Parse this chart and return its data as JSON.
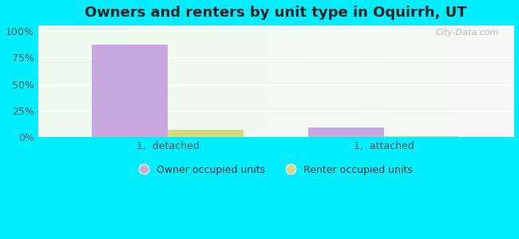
{
  "title": "Owners and renters by unit type in Oquirrh, UT",
  "categories": [
    "1,  detached",
    "1,  attached"
  ],
  "owner_values": [
    87,
    9
  ],
  "renter_values": [
    7,
    1
  ],
  "owner_color": "#c9a8e0",
  "renter_color": "#d4d97a",
  "fig_bg_color": "#00eeff",
  "plot_bg_color_center": "#eef8ee",
  "plot_bg_color_edge": "#d8f5f0",
  "yticks": [
    0,
    25,
    50,
    75,
    100
  ],
  "ylim": [
    0,
    105
  ],
  "bar_width": 0.35,
  "legend_labels": [
    "Owner occupied units",
    "Renter occupied units"
  ],
  "watermark": "City-Data.com",
  "title_fontsize": 13,
  "tick_fontsize": 9,
  "legend_fontsize": 9
}
